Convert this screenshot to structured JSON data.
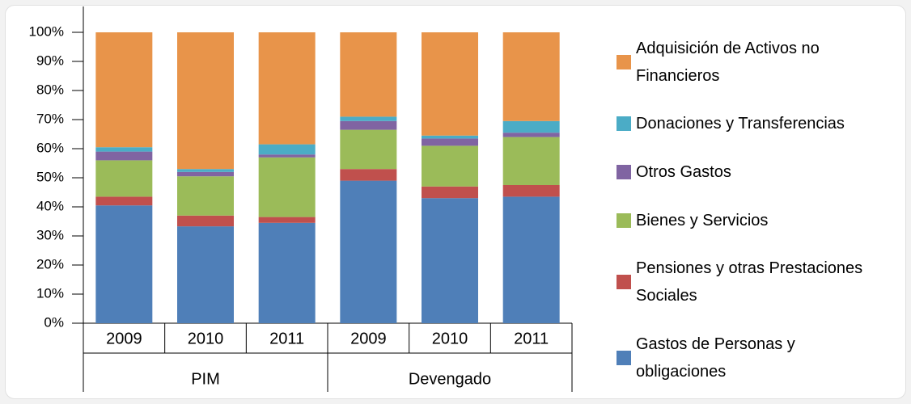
{
  "chart_data": {
    "type": "stacked_bar",
    "categories": [
      "2009",
      "2010",
      "2011",
      "2009",
      "2010",
      "2011"
    ],
    "groups": [
      "PIM",
      "Devengado"
    ],
    "series": [
      {
        "name": "Gastos de Personas y obligaciones",
        "color": "#4f7fb8",
        "values": [
          40.5,
          33.3,
          34.5,
          49,
          43,
          43.5
        ]
      },
      {
        "name": "Pensiones y otras Prestaciones Sociales",
        "color": "#c0504d",
        "values": [
          3,
          3.7,
          2,
          4,
          4,
          4
        ]
      },
      {
        "name": "Bienes y Servicios",
        "color": "#9bbb59",
        "values": [
          12.5,
          13.5,
          20.5,
          13.5,
          14,
          16.5
        ]
      },
      {
        "name": "Otros Gastos",
        "color": "#8064a2",
        "values": [
          3,
          1.5,
          1,
          3,
          2.5,
          1.5
        ]
      },
      {
        "name": "Donaciones y Transferencias",
        "color": "#4bacc6",
        "values": [
          1.5,
          1,
          3.5,
          1.5,
          1,
          4
        ]
      },
      {
        "name": "Adquisición de Activos no Financieros",
        "color": "#e8944a",
        "values": [
          39.5,
          47,
          38.5,
          29,
          35.5,
          30.5
        ]
      }
    ],
    "ylim": [
      0,
      100
    ],
    "yticks": [
      {
        "value": 0,
        "label": "0%"
      },
      {
        "value": 10,
        "label": "10%"
      },
      {
        "value": 20,
        "label": "20%"
      },
      {
        "value": 30,
        "label": "30%"
      },
      {
        "value": 40,
        "label": "40%"
      },
      {
        "value": 50,
        "label": "50%"
      },
      {
        "value": 60,
        "label": "60%"
      },
      {
        "value": 70,
        "label": "70%"
      },
      {
        "value": 80,
        "label": "80%"
      },
      {
        "value": 90,
        "label": "90%"
      },
      {
        "value": 100,
        "label": "100%"
      }
    ],
    "legend": "right"
  }
}
